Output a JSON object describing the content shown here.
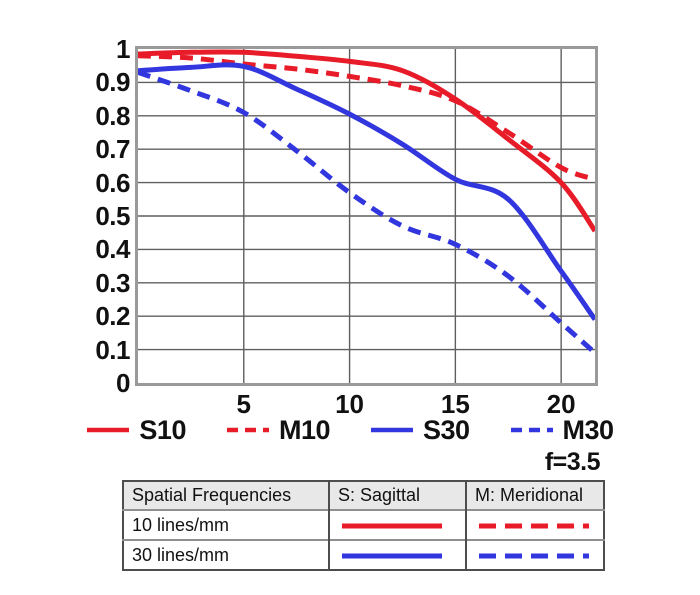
{
  "chart_data": {
    "type": "line",
    "title": "",
    "xlabel": "",
    "ylabel": "",
    "xlim": [
      0,
      21.6
    ],
    "ylim": [
      0,
      1
    ],
    "grid": true,
    "legend_position": "bottom",
    "aperture_label": "f=3.5",
    "x": [
      0,
      2.5,
      5,
      7.5,
      10,
      12.5,
      15,
      17.5,
      20,
      21.6
    ],
    "series": [
      {
        "name": "S10",
        "color": "#e81b29",
        "style": "solid",
        "values": [
          0.985,
          0.99,
          0.99,
          0.978,
          0.963,
          0.935,
          0.85,
          0.73,
          0.6,
          0.455
        ]
      },
      {
        "name": "M10",
        "color": "#e81b29",
        "style": "dashed",
        "values": [
          0.98,
          0.973,
          0.955,
          0.94,
          0.918,
          0.89,
          0.845,
          0.75,
          0.645,
          0.61
        ]
      },
      {
        "name": "S30",
        "color": "#3236de",
        "style": "solid",
        "values": [
          0.935,
          0.945,
          0.948,
          0.88,
          0.805,
          0.715,
          0.61,
          0.55,
          0.335,
          0.19
        ]
      },
      {
        "name": "M30",
        "color": "#3236de",
        "style": "dashed",
        "values": [
          0.93,
          0.875,
          0.81,
          0.695,
          0.57,
          0.47,
          0.415,
          0.32,
          0.18,
          0.09
        ]
      }
    ],
    "yticks": [
      {
        "value": 0.0,
        "label": "0"
      },
      {
        "value": 0.1,
        "label": "0.1"
      },
      {
        "value": 0.2,
        "label": "0.2"
      },
      {
        "value": 0.3,
        "label": "0.3"
      },
      {
        "value": 0.4,
        "label": "0.4"
      },
      {
        "value": 0.5,
        "label": "0.5"
      },
      {
        "value": 0.6,
        "label": "0.6"
      },
      {
        "value": 0.7,
        "label": "0.7"
      },
      {
        "value": 0.8,
        "label": "0.8"
      },
      {
        "value": 0.9,
        "label": "0.9"
      },
      {
        "value": 1.0,
        "label": "1"
      }
    ],
    "xticks": [
      {
        "value": 5,
        "label": "5"
      },
      {
        "value": 10,
        "label": "10"
      },
      {
        "value": 15,
        "label": "15"
      },
      {
        "value": 20,
        "label": "20"
      }
    ]
  },
  "legend": {
    "items": [
      {
        "label": "S10",
        "color": "#e81b29",
        "style": "solid"
      },
      {
        "label": "M10",
        "color": "#e81b29",
        "style": "dashed"
      },
      {
        "label": "S30",
        "color": "#3236de",
        "style": "solid"
      },
      {
        "label": "M30",
        "color": "#3236de",
        "style": "dashed"
      }
    ]
  },
  "table": {
    "headers": [
      "Spatial Frequencies",
      "S: Sagittal",
      "M: Meridional"
    ],
    "rows": [
      {
        "label": "10 lines/mm",
        "color": "#e81b29"
      },
      {
        "label": "30 lines/mm",
        "color": "#3236de"
      }
    ]
  },
  "colors": {
    "red": "#e81b29",
    "blue": "#3236de",
    "grid": "#5f5f5f",
    "frame": "#9a9a9a",
    "header_bg": "#e8e8e8",
    "text": "#111111"
  }
}
